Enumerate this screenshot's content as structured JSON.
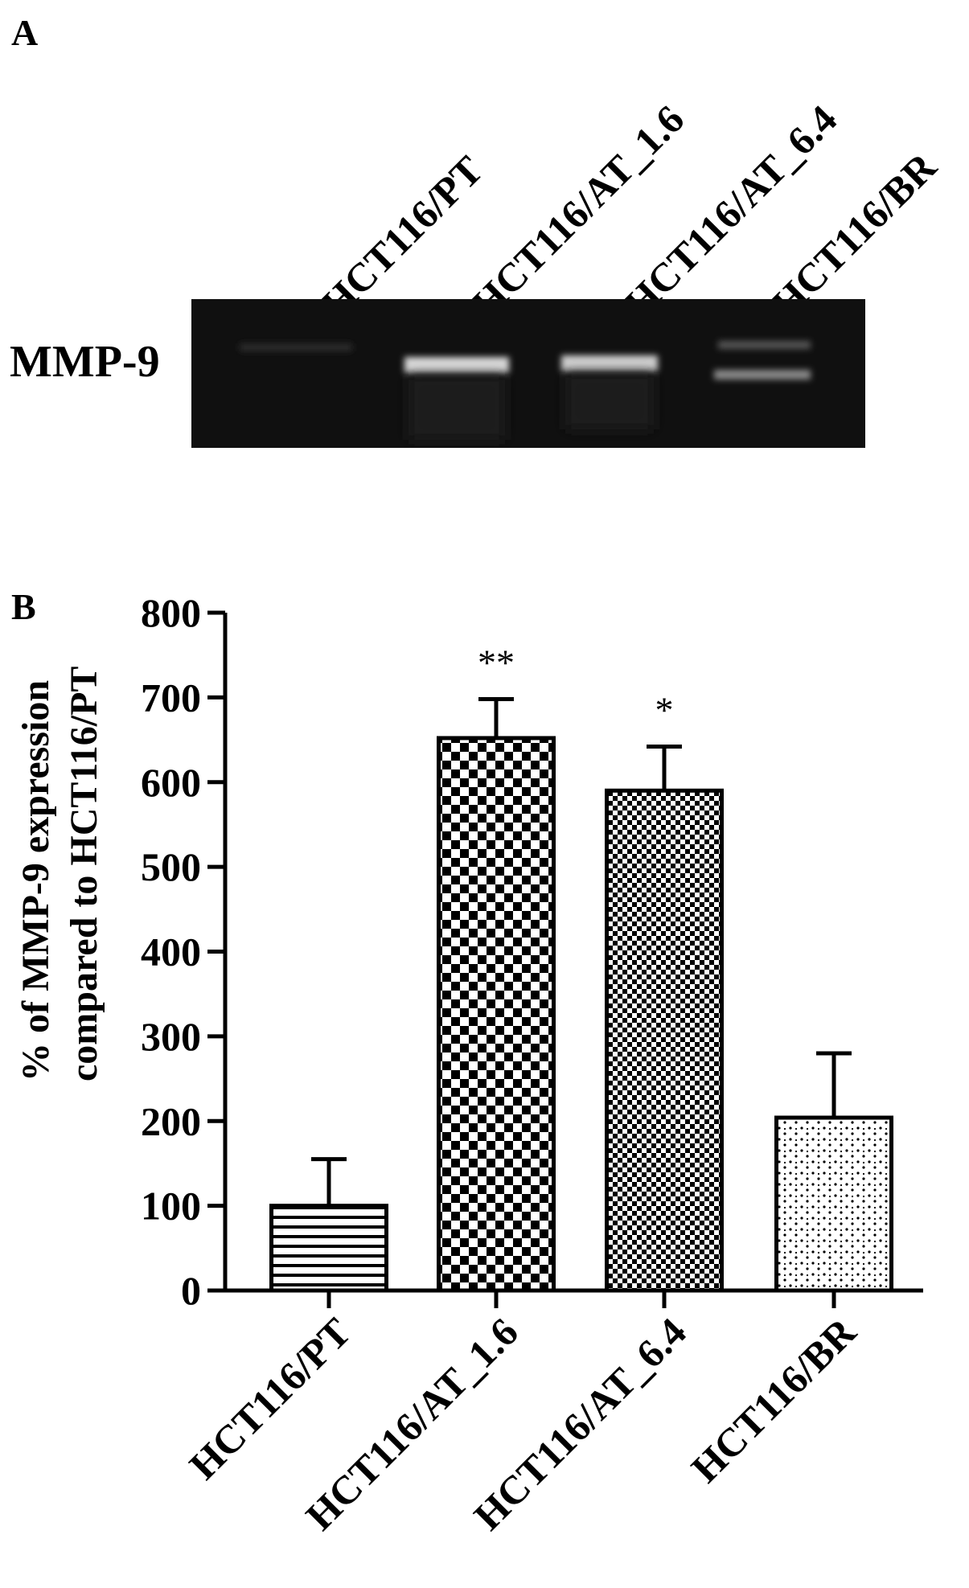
{
  "panel_a": {
    "letter": "A",
    "row_label": "MMP-9",
    "lanes": [
      "HCT116/PT",
      "HCT116/AT_1.6",
      "HCT116/AT_6.4",
      "HCT116/BR"
    ]
  },
  "panel_b": {
    "letter": "B"
  },
  "chart_data": {
    "type": "bar",
    "categories": [
      "HCT116/PT",
      "HCT116/AT_1.6",
      "HCT116/AT_6.4",
      "HCT116/BR"
    ],
    "values": [
      100,
      652,
      590,
      204
    ],
    "error_upper": [
      155,
      698,
      642,
      280
    ],
    "significance": [
      "",
      "**",
      "*",
      ""
    ],
    "ylabel_line1": "% of MMP-9 expression",
    "ylabel_line2": "compared to HCT116/PT",
    "xlabel": "",
    "ylim": [
      0,
      800
    ],
    "yticks": [
      0,
      100,
      200,
      300,
      400,
      500,
      600,
      700,
      800
    ],
    "patterns": [
      "horizontal-lines",
      "large-checker",
      "small-checker",
      "dotted"
    ],
    "grid": false,
    "bar_color": "#000000"
  }
}
